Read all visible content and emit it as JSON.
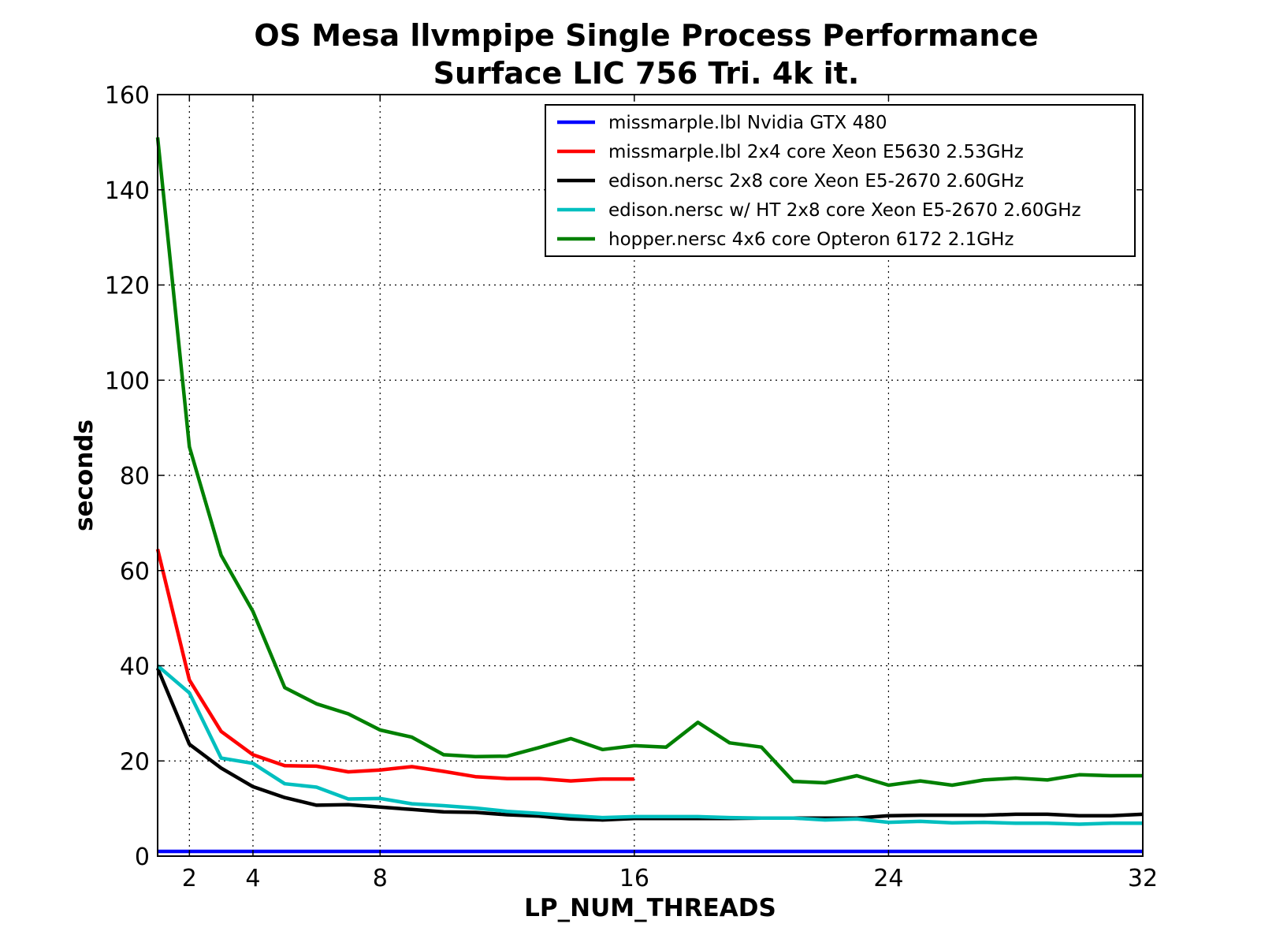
{
  "chart_data": {
    "type": "line",
    "title": [
      "OS Mesa llvmpipe Single Process Performance",
      "Surface LIC 756 Tri. 4k it."
    ],
    "xlabel": "LP_NUM_THREADS",
    "ylabel": "seconds",
    "xlim": [
      1,
      32
    ],
    "ylim": [
      0,
      160
    ],
    "xticks": [
      2,
      4,
      8,
      16,
      24,
      32
    ],
    "yticks": [
      0,
      20,
      40,
      60,
      80,
      100,
      120,
      140,
      160
    ],
    "grid": true,
    "legend_position": "top-right",
    "series": [
      {
        "name": "missmarple.lbl Nvidia GTX 480",
        "color": "#0000ff",
        "x": [
          1,
          32
        ],
        "y": [
          1,
          1
        ]
      },
      {
        "name": "missmarple.lbl 2x4 core Xeon E5630 2.53GHz",
        "color": "#ff0000",
        "x": [
          1,
          2,
          3,
          4,
          5,
          6,
          7,
          8,
          9,
          10,
          11,
          12,
          13,
          14,
          15,
          16
        ],
        "y": [
          64.5,
          37,
          26.2,
          21.3,
          19,
          18.9,
          17.7,
          18.1,
          18.8,
          17.8,
          16.7,
          16.3,
          16.3,
          15.8,
          16.2,
          16.2
        ]
      },
      {
        "name": "edison.nersc 2x8 core Xeon E5-2670 2.60GHz",
        "color": "#000000",
        "x": [
          1,
          2,
          3,
          4,
          5,
          6,
          7,
          8,
          9,
          10,
          11,
          12,
          13,
          14,
          15,
          16,
          17,
          18,
          19,
          20,
          21,
          22,
          23,
          24,
          25,
          26,
          27,
          28,
          29,
          30,
          31,
          32
        ],
        "y": [
          39.5,
          23.5,
          18.5,
          14.6,
          12.3,
          10.7,
          10.8,
          10.3,
          9.8,
          9.3,
          9.2,
          8.7,
          8.4,
          7.8,
          7.6,
          7.9,
          7.9,
          7.9,
          7.9,
          8,
          8,
          8,
          8,
          8.5,
          8.6,
          8.6,
          8.6,
          8.8,
          8.8,
          8.5,
          8.5,
          8.8
        ]
      },
      {
        "name": "edison.nersc w/ HT 2x8 core Xeon E5-2670 2.60GHz",
        "color": "#00bfbf",
        "x": [
          1,
          2,
          3,
          4,
          5,
          6,
          7,
          8,
          9,
          10,
          11,
          12,
          13,
          14,
          15,
          16,
          17,
          18,
          19,
          20,
          21,
          22,
          23,
          24,
          25,
          26,
          27,
          28,
          29,
          30,
          31,
          32
        ],
        "y": [
          40,
          34.3,
          20.6,
          19.5,
          15.2,
          14.5,
          12,
          12.1,
          11,
          10.6,
          10.1,
          9.4,
          9,
          8.5,
          8.1,
          8.3,
          8.3,
          8.3,
          8.1,
          8,
          8,
          7.6,
          7.8,
          7.1,
          7.3,
          7,
          7.1,
          6.9,
          6.9,
          6.7,
          6.9,
          6.9
        ]
      },
      {
        "name": "hopper.nersc 4x6 core Opteron 6172 2.1GHz",
        "color": "#008000",
        "x": [
          1,
          2,
          3,
          4,
          5,
          6,
          7,
          8,
          9,
          10,
          11,
          12,
          13,
          14,
          15,
          16,
          17,
          18,
          19,
          20,
          21,
          22,
          23,
          24,
          25,
          26,
          27,
          28,
          29,
          30,
          31,
          32
        ],
        "y": [
          151,
          86,
          63.2,
          51.4,
          35.4,
          32,
          29.9,
          26.5,
          25,
          21.3,
          20.9,
          21,
          22.8,
          24.7,
          22.4,
          23.2,
          22.9,
          28.1,
          23.8,
          22.9,
          15.7,
          15.4,
          16.9,
          14.9,
          15.8,
          14.9,
          16,
          16.4,
          16,
          17.1,
          16.9,
          16.9
        ]
      }
    ]
  }
}
